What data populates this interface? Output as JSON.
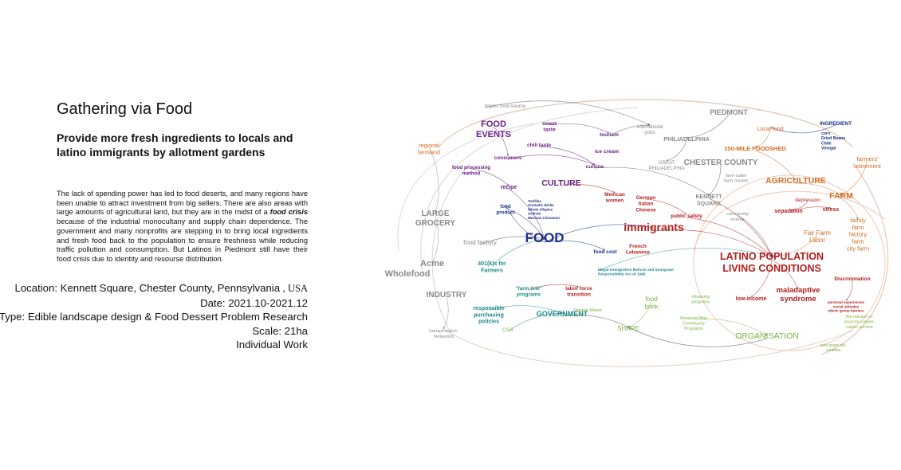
{
  "header": {
    "title": "Gathering via Food",
    "subtitle": "Provide more fresh ingredients to locals and latino immigrants by allotment gardens"
  },
  "description": {
    "part1": "The lack of spending power has led to food deserts, and many regions have been unable to attract investment from big sellers. There are also areas with large amounts of agricultural land, but they are in the midst of a ",
    "emphasis": "food crisis",
    "part2": " because of the industrial monocultany and supply chain dependence. The government and many nonprofits are stepping in to bring local ingredients and fresh food back to the population to ensure freshness while reducing traffic pollution and consumption. But Latinos in Piedmont still have their food crisis due to identity and resourse distribution."
  },
  "meta": {
    "location": "Location: Kennett Square, Chester County, Pennsylvania",
    "location_country": ", USA",
    "date": "Date: 2021.10-2021.12",
    "type": "Type: Edible landscape design & Food Dessert Problem Research",
    "scale": "Scale: 21ha",
    "work": "Individual Work"
  },
  "colors": {
    "blue": "#1c2f8c",
    "purple": "#6b1f86",
    "red": "#b51d1d",
    "orange": "#d46a1e",
    "gray": "#8a8a8a",
    "teal": "#1b8a8e",
    "green": "#7cb342",
    "edge_dark": "#555555"
  },
  "diagram": {
    "nodes": [
      {
        "id": "import",
        "lines": [
          "import food source"
        ],
        "color": "gray"
      },
      {
        "id": "food_events",
        "lines": [
          "FOOD",
          "EVENTS"
        ],
        "color": "purple"
      },
      {
        "id": "sweet_taste",
        "lines": [
          "sweet",
          "taste"
        ],
        "color": "purple"
      },
      {
        "id": "chili_taste",
        "lines": [
          "chili taste"
        ],
        "color": "purple"
      },
      {
        "id": "tourism",
        "lines": [
          "tourism"
        ],
        "color": "purple"
      },
      {
        "id": "intl_ports",
        "lines": [
          "international",
          "ports"
        ],
        "color": "gray"
      },
      {
        "id": "piedmont",
        "lines": [
          "PIEDMONT"
        ],
        "color": "gray"
      },
      {
        "id": "ingredient",
        "lines": [
          "INGREDIENT"
        ],
        "color": "blue"
      },
      {
        "id": "ingredient_list",
        "lines": [
          "corn",
          "Dried Beans",
          "Chile",
          "Vinegar"
        ],
        "color": "blue"
      },
      {
        "id": "local_food",
        "lines": [
          "Local food"
        ],
        "color": "orange"
      },
      {
        "id": "philadelphia",
        "lines": [
          "PHILIADELPHIA"
        ],
        "color": "gray"
      },
      {
        "id": "regional_farmland",
        "lines": [
          "regional",
          "farmland"
        ],
        "color": "orange"
      },
      {
        "id": "consumers",
        "lines": [
          "consumers"
        ],
        "color": "purple"
      },
      {
        "id": "ice_cream",
        "lines": [
          "ice cream"
        ],
        "color": "purple"
      },
      {
        "id": "foodshed",
        "lines": [
          "100-MILE FOODSHED"
        ],
        "color": "orange"
      },
      {
        "id": "great_phila",
        "lines": [
          "GREAT",
          "PHILIADELPHIA"
        ],
        "color": "gray"
      },
      {
        "id": "chester",
        "lines": [
          "CHESTER COUNTY"
        ],
        "color": "gray"
      },
      {
        "id": "farmers_retirement",
        "lines": [
          "farmers'",
          "retirement"
        ],
        "color": "orange"
      },
      {
        "id": "food_processing",
        "lines": [
          "food processing",
          "method"
        ],
        "color": "purple"
      },
      {
        "id": "cuisine",
        "lines": [
          "cuisine"
        ],
        "color": "purple"
      },
      {
        "id": "farm_outlet",
        "lines": [
          "farm outlet",
          "farm market"
        ],
        "color": "gray"
      },
      {
        "id": "agriculture",
        "lines": [
          "AGRICULTURE"
        ],
        "color": "orange"
      },
      {
        "id": "recipe",
        "lines": [
          "recipe"
        ],
        "color": "purple"
      },
      {
        "id": "culture",
        "lines": [
          "CULTURE"
        ],
        "color": "purple"
      },
      {
        "id": "mexican_women",
        "lines": [
          "Mexican",
          "women"
        ],
        "color": "red"
      },
      {
        "id": "kennett",
        "lines": [
          "KENNETT",
          "SQUARE"
        ],
        "color": "gray"
      },
      {
        "id": "farm",
        "lines": [
          "FARM"
        ],
        "color": "orange"
      },
      {
        "id": "depression",
        "lines": [
          "depression"
        ],
        "color": "red"
      },
      {
        "id": "large_grocery",
        "lines": [
          "LARGE",
          "GROCERY"
        ],
        "color": "gray"
      },
      {
        "id": "tortillas",
        "lines": [
          "Tortillas",
          "Aromatic Herbs",
          "Whole Allspice",
          "Achiote",
          "Mexican Cinnamon"
        ],
        "color": "blue"
      },
      {
        "id": "food_product",
        "lines": [
          "food",
          "product"
        ],
        "color": "blue"
      },
      {
        "id": "german",
        "lines": [
          "German",
          "Italian",
          "Chinese"
        ],
        "color": "red"
      },
      {
        "id": "public_safety",
        "lines": [
          "public safety"
        ],
        "color": "red"
      },
      {
        "id": "community_events",
        "lines": [
          "community",
          "events"
        ],
        "color": "gray"
      },
      {
        "id": "separation",
        "lines": [
          "separation"
        ],
        "color": "red"
      },
      {
        "id": "stress",
        "lines": [
          "stress"
        ],
        "color": "red"
      },
      {
        "id": "family_farm",
        "lines": [
          "family",
          "farm",
          "factory",
          "farm",
          "city farm"
        ],
        "color": "orange"
      },
      {
        "id": "immigrants",
        "lines": [
          "immigrants"
        ],
        "color": "red"
      },
      {
        "id": "food",
        "lines": [
          "FOOD"
        ],
        "color": "blue"
      },
      {
        "id": "food_factory",
        "lines": [
          "food factory"
        ],
        "color": "gray"
      },
      {
        "id": "fair_farm",
        "lines": [
          "Fair Farm",
          "Labor"
        ],
        "color": "orange"
      },
      {
        "id": "french",
        "lines": [
          "French",
          "Lebanese"
        ],
        "color": "red"
      },
      {
        "id": "food_cost",
        "lines": [
          "food cost"
        ],
        "color": "blue"
      },
      {
        "id": "acme",
        "lines": [
          "Acme"
        ],
        "color": "gray"
      },
      {
        "id": "wholefood",
        "lines": [
          "Wholefood"
        ],
        "color": "gray"
      },
      {
        "id": "k401",
        "lines": [
          "401(k)s for",
          "Farmers"
        ],
        "color": "teal"
      },
      {
        "id": "latino",
        "lines": [
          "LATINO POPULATION",
          "LIVING CONDITIONS"
        ],
        "color": "red"
      },
      {
        "id": "illegal_immigration",
        "lines": [
          "Illegal Immigration Reform and Immigrant",
          "Responsibility Act of 1996"
        ],
        "color": "teal"
      },
      {
        "id": "discrimination",
        "lines": [
          "Discrimination"
        ],
        "color": "red"
      },
      {
        "id": "farm_link",
        "lines": [
          "\"farm link\"",
          "programs"
        ],
        "color": "teal"
      },
      {
        "id": "labor_force",
        "lines": [
          "labor force",
          "transition"
        ],
        "color": "red"
      },
      {
        "id": "maladaptive",
        "lines": [
          "maladaptive",
          "syndrome"
        ],
        "color": "red"
      },
      {
        "id": "industry",
        "lines": [
          "INDUSTRY"
        ],
        "color": "gray"
      },
      {
        "id": "food_bank",
        "lines": [
          "food",
          "bank"
        ],
        "color": "green"
      },
      {
        "id": "gleaning",
        "lines": [
          "Gleaning",
          "programs"
        ],
        "color": "green"
      },
      {
        "id": "low_income",
        "lines": [
          "low-income"
        ],
        "color": "red"
      },
      {
        "id": "personal_exp",
        "lines": [
          "personal experiences",
          "social attitudes",
          "ethnic group barriers"
        ],
        "color": "red"
      },
      {
        "id": "responsible",
        "lines": [
          "responsible",
          "purchasing",
          "policies"
        ],
        "color": "teal"
      },
      {
        "id": "government",
        "lines": [
          "GOVERNMENT"
        ],
        "color": "teal"
      },
      {
        "id": "stenton",
        "lines": [
          "Stenton Manor"
        ],
        "color": "green"
      },
      {
        "id": "weavers",
        "lines": [
          "Weavers Way",
          "Community",
          "Programs"
        ],
        "color": "green"
      },
      {
        "id": "natural_resources",
        "lines": [
          "the natural re-",
          "sources conser-",
          "vation service"
        ],
        "color": "green"
      },
      {
        "id": "share",
        "lines": [
          "SHARE"
        ],
        "color": "green"
      },
      {
        "id": "csa",
        "lines": [
          "CSA"
        ],
        "color": "green"
      },
      {
        "id": "transportation",
        "lines": [
          "transportation",
          "Networks"
        ],
        "color": "gray"
      },
      {
        "id": "organisation",
        "lines": [
          "ORGANISATION"
        ],
        "color": "green"
      },
      {
        "id": "land_grant",
        "lines": [
          "land grant uni-",
          "versities"
        ],
        "color": "green"
      }
    ]
  }
}
